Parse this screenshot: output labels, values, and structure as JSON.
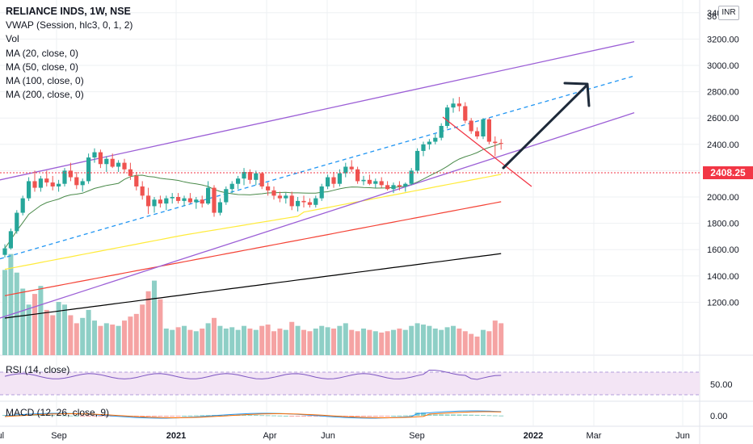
{
  "legend": {
    "symbol": "RELIANCE INDS, 1W, NSE",
    "indicators": [
      "VWAP (Session, hlc3, 0, 1, 2)",
      "Vol",
      "MA (20, close, 0)",
      "MA (50, close, 0)",
      "MA (100, close, 0)",
      "MA (200, close, 0)"
    ]
  },
  "rsi_label": "RSI (14, close)",
  "macd_label": "MACD (12, 26, close, 9)",
  "currency_badge": "INR",
  "last_price_tag": "2408.25",
  "colors": {
    "up": "#26a69a",
    "down": "#ef5350",
    "vol_up": "#8ecfc6",
    "vol_down": "#f5a3a3",
    "ma20": "#4a8a4a",
    "ma50": "#ffeb3b",
    "ma100": "#f44336",
    "ma200": "#000000",
    "channel": "#9c5fd6",
    "midline": "#2196f3",
    "rsi": "#7e57c2",
    "rsi_band": "#f3e5f5",
    "macd": "#2196f3",
    "signal": "#ff6d00",
    "arrow": "#1e2a3a",
    "resistance": "#f23645",
    "grid": "#eef0f3"
  },
  "chart_data": {
    "type": "candlestick",
    "symbol": "RELIANCE INDS",
    "interval": "1W",
    "exchange": "NSE",
    "y_axis": {
      "ticks": [
        "3400.00",
        "3200.00",
        "3000.00",
        "2800.00",
        "2600.00",
        "2400.00",
        "2200.00",
        "2000.00",
        "1800.00",
        "1600.00",
        "1400.00",
        "1200.00"
      ],
      "top_partial": "36",
      "range": [
        1080,
        3700
      ]
    },
    "x_axis": {
      "labels": [
        "Jul",
        "Sep",
        "2021",
        "Apr",
        "Jun",
        "Sep",
        "2022",
        "Mar",
        "Jun"
      ]
    },
    "rsi_axis": {
      "ticks": [
        "50.00"
      ]
    },
    "macd_axis": {
      "ticks": [
        "0.00"
      ]
    },
    "last_price": 2408.25,
    "ohlc": [
      [
        1560,
        1640,
        1540,
        1610
      ],
      [
        1610,
        1760,
        1600,
        1740
      ],
      [
        1740,
        1900,
        1720,
        1880
      ],
      [
        1880,
        2010,
        1860,
        1990
      ],
      [
        1990,
        2150,
        1970,
        2120
      ],
      [
        2120,
        2200,
        2040,
        2070
      ],
      [
        2070,
        2160,
        2040,
        2140
      ],
      [
        2140,
        2200,
        2080,
        2110
      ],
      [
        2110,
        2160,
        2050,
        2080
      ],
      [
        2080,
        2130,
        2040,
        2100
      ],
      [
        2100,
        2220,
        2080,
        2200
      ],
      [
        2200,
        2260,
        2120,
        2150
      ],
      [
        2150,
        2190,
        2060,
        2090
      ],
      [
        2090,
        2140,
        2040,
        2120
      ],
      [
        2120,
        2330,
        2100,
        2300
      ],
      [
        2300,
        2370,
        2260,
        2340
      ],
      [
        2340,
        2360,
        2220,
        2250
      ],
      [
        2250,
        2310,
        2190,
        2290
      ],
      [
        2290,
        2330,
        2220,
        2230
      ],
      [
        2230,
        2280,
        2190,
        2260
      ],
      [
        2260,
        2290,
        2180,
        2210
      ],
      [
        2210,
        2260,
        2130,
        2160
      ],
      [
        2160,
        2190,
        2050,
        2080
      ],
      [
        2080,
        2120,
        1980,
        2010
      ],
      [
        2010,
        2070,
        1870,
        1930
      ],
      [
        1930,
        2000,
        1880,
        1980
      ],
      [
        1980,
        2010,
        1920,
        1950
      ],
      [
        1950,
        2010,
        1900,
        1990
      ],
      [
        1990,
        2030,
        1950,
        2000
      ],
      [
        2000,
        2030,
        1950,
        1970
      ],
      [
        1970,
        2010,
        1930,
        1990
      ],
      [
        1990,
        2030,
        1950,
        1960
      ],
      [
        1960,
        2000,
        1910,
        1980
      ],
      [
        1980,
        2010,
        1920,
        1950
      ],
      [
        1950,
        2120,
        1940,
        2070
      ],
      [
        2070,
        2090,
        1850,
        1880
      ],
      [
        1880,
        1990,
        1860,
        1960
      ],
      [
        1960,
        2080,
        1940,
        2060
      ],
      [
        2060,
        2120,
        2030,
        2100
      ],
      [
        2100,
        2160,
        2060,
        2140
      ],
      [
        2140,
        2220,
        2090,
        2190
      ],
      [
        2190,
        2210,
        2100,
        2130
      ],
      [
        2130,
        2200,
        2090,
        2180
      ],
      [
        2180,
        2190,
        2060,
        2080
      ],
      [
        2080,
        2110,
        2010,
        2050
      ],
      [
        2050,
        2080,
        1980,
        2010
      ],
      [
        2010,
        2040,
        1960,
        1990
      ],
      [
        1990,
        2030,
        1950,
        2010
      ],
      [
        2010,
        2040,
        1900,
        1930
      ],
      [
        1930,
        2000,
        1890,
        1970
      ],
      [
        1970,
        2010,
        1920,
        1960
      ],
      [
        1960,
        1990,
        1920,
        1940
      ],
      [
        1940,
        2010,
        1920,
        1990
      ],
      [
        1990,
        2100,
        1970,
        2080
      ],
      [
        2080,
        2170,
        2060,
        2150
      ],
      [
        2150,
        2190,
        2070,
        2100
      ],
      [
        2100,
        2210,
        2080,
        2180
      ],
      [
        2180,
        2260,
        2150,
        2230
      ],
      [
        2230,
        2280,
        2190,
        2210
      ],
      [
        2210,
        2230,
        2100,
        2120
      ],
      [
        2120,
        2160,
        2090,
        2130
      ],
      [
        2130,
        2170,
        2090,
        2100
      ],
      [
        2100,
        2140,
        2070,
        2120
      ],
      [
        2120,
        2150,
        2070,
        2090
      ],
      [
        2090,
        2120,
        2050,
        2060
      ],
      [
        2060,
        2110,
        2030,
        2090
      ],
      [
        2090,
        2120,
        2050,
        2080
      ],
      [
        2080,
        2110,
        2040,
        2100
      ],
      [
        2100,
        2220,
        2090,
        2200
      ],
      [
        2200,
        2370,
        2180,
        2350
      ],
      [
        2350,
        2420,
        2310,
        2400
      ],
      [
        2400,
        2440,
        2360,
        2420
      ],
      [
        2420,
        2480,
        2400,
        2450
      ],
      [
        2450,
        2560,
        2430,
        2540
      ],
      [
        2540,
        2700,
        2520,
        2680
      ],
      [
        2680,
        2750,
        2640,
        2710
      ],
      [
        2710,
        2760,
        2650,
        2690
      ],
      [
        2690,
        2720,
        2560,
        2580
      ],
      [
        2580,
        2600,
        2480,
        2500
      ],
      [
        2500,
        2530,
        2440,
        2460
      ],
      [
        2460,
        2600,
        2440,
        2590
      ],
      [
        2590,
        2600,
        2400,
        2420
      ],
      [
        2420,
        2460,
        2310,
        2410
      ],
      [
        2410,
        2440,
        2360,
        2408.25
      ]
    ],
    "volume": [
      320,
      380,
      310,
      250,
      190,
      230,
      260,
      170,
      150,
      200,
      190,
      150,
      120,
      140,
      170,
      130,
      110,
      120,
      115,
      110,
      130,
      145,
      155,
      190,
      240,
      280,
      210,
      100,
      95,
      105,
      110,
      95,
      90,
      100,
      120,
      140,
      110,
      100,
      105,
      95,
      110,
      100,
      95,
      110,
      115,
      90,
      100,
      95,
      125,
      110,
      95,
      90,
      100,
      110,
      105,
      100,
      110,
      120,
      95,
      90,
      100,
      95,
      90,
      85,
      90,
      95,
      100,
      95,
      110,
      120,
      115,
      110,
      100,
      95,
      105,
      110,
      100,
      90,
      80,
      70,
      95,
      90,
      130,
      120
    ],
    "channel": {
      "upper": {
        "from": [
          "Jul 2020",
          2130
        ],
        "to": [
          "Mar 2022",
          3180
        ]
      },
      "lower": {
        "from": [
          "Jul 2020",
          1080
        ],
        "to": [
          "Mar 2022",
          2640
        ]
      },
      "mid": {
        "from": [
          "Jul 2020",
          1530
        ],
        "to": [
          "Mar 2022",
          2920
        ]
      }
    }
  }
}
